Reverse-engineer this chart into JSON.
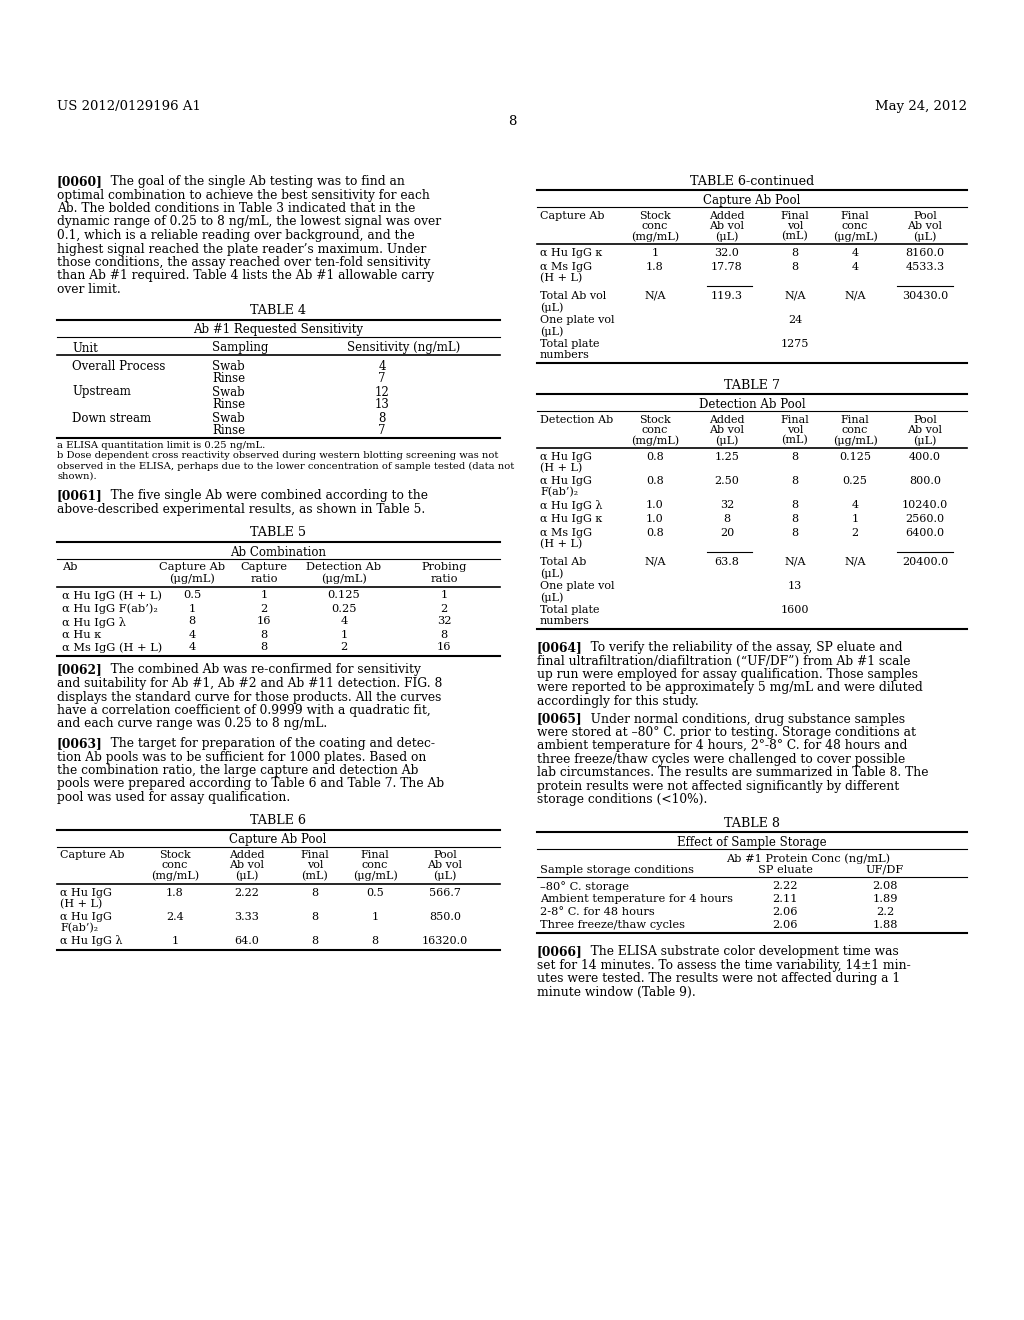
{
  "header_left": "US 2012/0129196 A1",
  "header_right": "May 24, 2012",
  "page_number": "8",
  "bg_color": "#ffffff",
  "para0060_bold": "[0060]",
  "para0060_rest_lines": [
    "   The goal of the single Ab testing was to find an",
    "optimal combination to achieve the best sensitivity for each",
    "Ab. The bolded conditions in Table 3 indicated that in the",
    "dynamic range of 0.25 to 8 ng/mL, the lowest signal was over",
    "0.1, which is a reliable reading over background, and the",
    "highest signal reached the plate reader’s maximum. Under",
    "those conditions, the assay reached over ten-fold sensitivity",
    "than Ab #1 required. Table 4 lists the Ab #1 allowable carry",
    "over limit."
  ],
  "table4_title": "TABLE 4",
  "table4_subtitle": "Ab #1 Requested Sensitivity",
  "table4_col1": "Unit",
  "table4_col2": "Sampling",
  "table4_col3": "Sensitivity (ng/mL)",
  "table4_rows": [
    [
      "Overall Process",
      "Swab",
      "4"
    ],
    [
      "",
      "Rinse",
      "7"
    ],
    [
      "Upstream",
      "Swab",
      "12"
    ],
    [
      "",
      "Rinse",
      "13"
    ],
    [
      "Down stream",
      "Swab",
      "8"
    ],
    [
      "",
      "Rinse",
      "7"
    ]
  ],
  "table4_fn_a": "a ELISA quantitation limit is 0.25 ng/mL.",
  "table4_fn_b_lines": [
    "b Dose dependent cross reactivity observed during western blotting screening was not",
    "observed in the ELISA, perhaps due to the lower concentration of sample tested (data not",
    "shown)."
  ],
  "para0061_bold": "[0061]",
  "para0061_rest_lines": [
    "   The five single Ab were combined according to the",
    "above-described experimental results, as shown in Table 5."
  ],
  "table5_title": "TABLE 5",
  "table5_subtitle": "Ab Combination",
  "table5_h1": "Ab",
  "table5_h2a": "Capture Ab",
  "table5_h2b": "(μg/mL)",
  "table5_h3a": "Capture",
  "table5_h3b": "ratio",
  "table5_h4a": "Detection Ab",
  "table5_h4b": "(μg/mL)",
  "table5_h5a": "Probing",
  "table5_h5b": "ratio",
  "table5_rows": [
    [
      "α Hu IgG (H + L)",
      "0.5",
      "1",
      "0.125",
      "1"
    ],
    [
      "α Hu IgG F(ab’)₂",
      "1",
      "2",
      "0.25",
      "2"
    ],
    [
      "α Hu IgG λ",
      "8",
      "16",
      "4",
      "32"
    ],
    [
      "α Hu κ",
      "4",
      "8",
      "1",
      "8"
    ],
    [
      "α Ms IgG (H + L)",
      "4",
      "8",
      "2",
      "16"
    ]
  ],
  "para0062_bold": "[0062]",
  "para0062_rest_lines": [
    "   The combined Ab was re-confirmed for sensitivity",
    "and suitability for Ab #1, Ab #2 and Ab #11 detection. FIG. 8",
    "displays the standard curve for those products. All the curves",
    "have a correlation coefficient of 0.9999 with a quadratic fit,",
    "and each curve range was 0.25 to 8 ng/mL."
  ],
  "para0063_bold": "[0063]",
  "para0063_rest_lines": [
    "   The target for preparation of the coating and detec-",
    "tion Ab pools was to be sufficient for 1000 plates. Based on",
    "the combination ratio, the large capture and detection Ab",
    "pools were prepared according to Table 6 and Table 7. The Ab",
    "pool was used for assay qualification."
  ],
  "table6_title": "TABLE 6",
  "table6_subtitle": "Capture Ab Pool",
  "table6_h1": "Capture Ab",
  "table6_h2": [
    "Stock",
    "conc",
    "(mg/mL)"
  ],
  "table6_h3": [
    "Added",
    "Ab vol",
    "(μL)"
  ],
  "table6_h4": [
    "Final",
    "vol",
    "(mL)"
  ],
  "table6_h5": [
    "Final",
    "conc",
    "(μg/mL)"
  ],
  "table6_h6": [
    "Pool",
    "Ab vol",
    "(μL)"
  ],
  "table6_rows": [
    [
      "α Hu IgG",
      "(H + L)",
      "1.8",
      "2.22",
      "8",
      "0.5",
      "566.7"
    ],
    [
      "α Hu IgG",
      "F(ab’)₂",
      "2.4",
      "3.33",
      "8",
      "1",
      "850.0"
    ],
    [
      "α Hu IgG λ",
      "",
      "1",
      "64.0",
      "8",
      "8",
      "16320.0"
    ]
  ],
  "table6cont_title": "TABLE 6-continued",
  "table6cont_subtitle": "Capture Ab Pool",
  "table6cont_rows": [
    [
      "α Hu IgG κ",
      "",
      "1",
      "32.0",
      "8",
      "4",
      "8160.0"
    ],
    [
      "α Ms IgG",
      "(H + L)",
      "1.8",
      "17.78",
      "8",
      "4",
      "4533.3"
    ]
  ],
  "table6cont_total_label1": "Total Ab vol",
  "table6cont_total_label2": "(μL)",
  "table6cont_total": [
    "N/A",
    "119.3",
    "N/A",
    "N/A",
    "30430.0"
  ],
  "table6cont_plate1_label1": "One plate vol",
  "table6cont_plate1_label2": "(μL)",
  "table6cont_plate1_val": "24",
  "table6cont_plate2_label1": "Total plate",
  "table6cont_plate2_label2": "numbers",
  "table6cont_plate2_val": "1275",
  "table7_title": "TABLE 7",
  "table7_subtitle": "Detection Ab Pool",
  "table7_h1": "Detection Ab",
  "table7_rows": [
    [
      "α Hu IgG",
      "(H + L)",
      "0.8",
      "1.25",
      "8",
      "0.125",
      "400.0"
    ],
    [
      "α Hu IgG",
      "F(ab’)₂",
      "0.8",
      "2.50",
      "8",
      "0.25",
      "800.0"
    ],
    [
      "α Hu IgG λ",
      "",
      "1.0",
      "32",
      "8",
      "4",
      "10240.0"
    ],
    [
      "α Hu IgG κ",
      "",
      "1.0",
      "8",
      "8",
      "1",
      "2560.0"
    ],
    [
      "α Ms IgG",
      "(H + L)",
      "0.8",
      "20",
      "8",
      "2",
      "6400.0"
    ]
  ],
  "table7_total_label1": "Total Ab",
  "table7_total_label2": "(μL)",
  "table7_total": [
    "N/A",
    "63.8",
    "N/A",
    "N/A",
    "20400.0"
  ],
  "table7_plate1_label1": "One plate vol",
  "table7_plate1_label2": "(μL)",
  "table7_plate1_val": "13",
  "table7_plate2_label1": "Total plate",
  "table7_plate2_label2": "numbers",
  "table7_plate2_val": "1600",
  "para0064_bold": "[0064]",
  "para0064_rest_lines": [
    "   To verify the reliability of the assay, SP eluate and",
    "final ultrafiltration/diafiltration (“UF/DF”) from Ab #1 scale",
    "up run were employed for assay qualification. Those samples",
    "were reported to be approximately 5 mg/mL and were diluted",
    "accordingly for this study."
  ],
  "para0065_bold": "[0065]",
  "para0065_rest_lines": [
    "   Under normal conditions, drug substance samples",
    "were stored at –80° C. prior to testing. Storage conditions at",
    "ambient temperature for 4 hours, 2°-8° C. for 48 hours and",
    "three freeze/thaw cycles were challenged to cover possible",
    "lab circumstances. The results are summarized in Table 8. The",
    "protein results were not affected significantly by different",
    "storage conditions (<10%)."
  ],
  "table8_title": "TABLE 8",
  "table8_subtitle": "Effect of Sample Storage",
  "table8_subsubtitle": "Ab #1 Protein Conc (ng/mL)",
  "table8_col1": "Sample storage conditions",
  "table8_col2": "SP eluate",
  "table8_col3": "UF/DF",
  "table8_rows": [
    [
      "–80° C. storage",
      "2.22",
      "2.08"
    ],
    [
      "Ambient temperature for 4 hours",
      "2.11",
      "1.89"
    ],
    [
      "2-8° C. for 48 hours",
      "2.06",
      "2.2"
    ],
    [
      "Three freeze/thaw cycles",
      "2.06",
      "1.88"
    ]
  ],
  "para0066_bold": "[0066]",
  "para0066_rest_lines": [
    "   The ELISA substrate color development time was",
    "set for 14 minutes. To assess the time variability, 14±1 min-",
    "utes were tested. The results were not affected during a 1",
    "minute window (Table 9)."
  ]
}
